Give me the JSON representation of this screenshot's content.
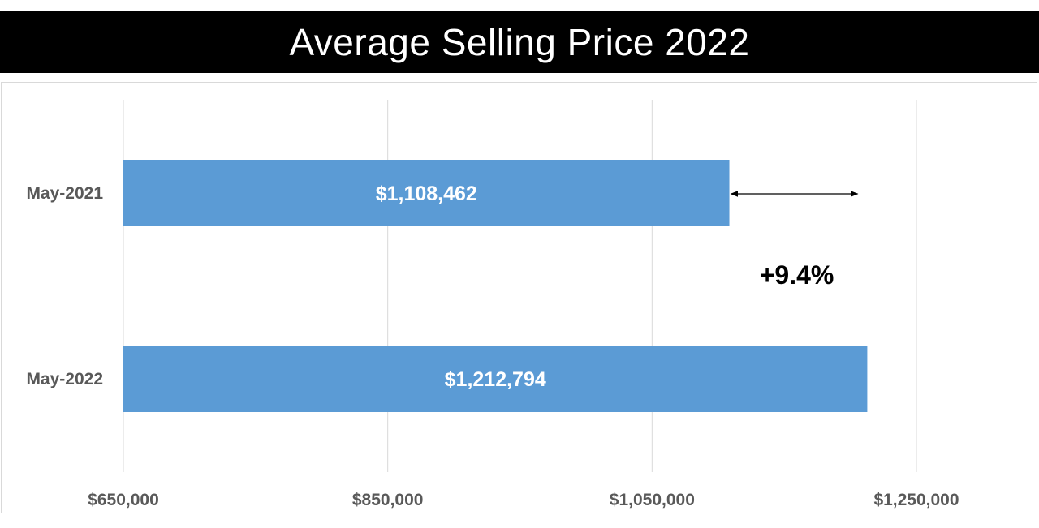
{
  "chart_data": {
    "type": "bar",
    "orientation": "horizontal",
    "title": "Average Selling Price 2022",
    "categories": [
      "May-2021",
      "May-2022"
    ],
    "values": [
      1108462,
      1212794
    ],
    "value_labels": [
      "$1,108,462",
      "$1,212,794"
    ],
    "xlim": [
      650000,
      1250000
    ],
    "x_ticks": [
      650000,
      850000,
      1050000,
      1250000
    ],
    "x_tick_labels": [
      "$650,000",
      "$850,000",
      "$1,050,000",
      "$1,250,000"
    ],
    "xlabel": "",
    "ylabel": "",
    "grid": true,
    "legend": "none",
    "annotation": "+9.4%",
    "colors": {
      "bar": "#5b9bd5",
      "title_background": "#000000",
      "title_text": "#ffffff",
      "gridline": "#d9d9d9",
      "axis_text": "#595959"
    }
  }
}
